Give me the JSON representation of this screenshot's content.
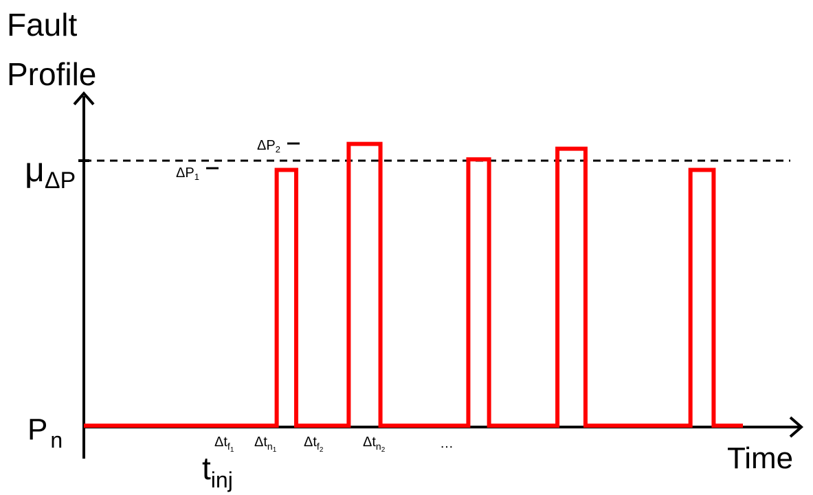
{
  "diagram": {
    "y_axis_title_line1": "Fault",
    "y_axis_title_line2": "Profile",
    "x_axis_title": "Time",
    "mu_symbol": "μ",
    "mu_subscript": "ΔP",
    "baseline_symbol": "P",
    "baseline_subscript": "n",
    "injection_symbol": "t",
    "injection_subscript": "inj",
    "pulse_labels": [
      {
        "main": "ΔP",
        "sub": "1"
      },
      {
        "main": "ΔP",
        "sub": "2"
      }
    ],
    "interval_labels": [
      {
        "main": "Δt",
        "sub": "f",
        "subsub": "1"
      },
      {
        "main": "Δt",
        "sub": "n",
        "subsub": "1"
      },
      {
        "main": "Δt",
        "sub": "f",
        "subsub": "2"
      },
      {
        "main": "Δt",
        "sub": "n",
        "subsub": "2"
      }
    ],
    "ellipsis": "…",
    "colors": {
      "signal": "#ff0000",
      "axis": "#000000",
      "mean_line": "#000000"
    },
    "signal": {
      "baseline_level": 0,
      "mean_level": 1.0,
      "pulses": [
        {
          "start": 0.316,
          "end": 0.348,
          "level": 0.965
        },
        {
          "start": 0.434,
          "end": 0.486,
          "level": 1.063
        },
        {
          "start": 0.63,
          "end": 0.664,
          "level": 1.005
        },
        {
          "start": 0.776,
          "end": 0.822,
          "level": 1.045
        },
        {
          "start": 0.994,
          "end": 1.032,
          "level": 0.965
        }
      ],
      "t_end": 1.08
    }
  }
}
